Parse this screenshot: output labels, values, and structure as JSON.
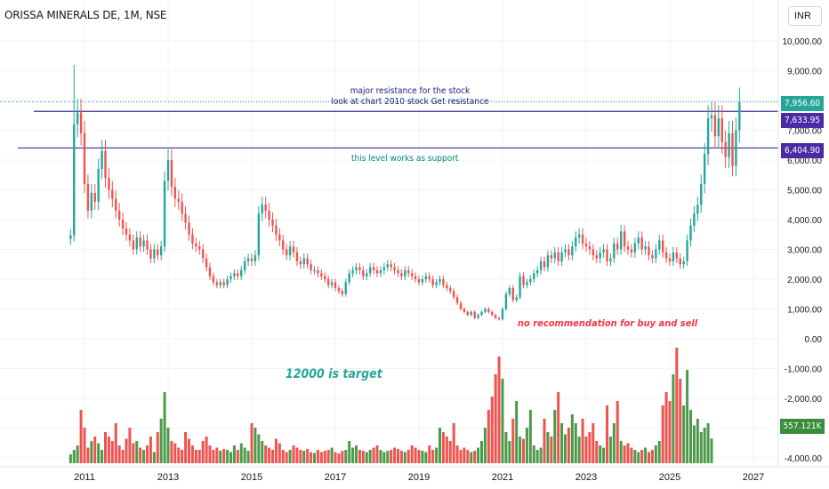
{
  "header": {
    "title": "ORISSA MINERALS DE, 1M, NSE",
    "currency_label": "INR"
  },
  "annotations": {
    "resistance_line1": "major resistance for the stock",
    "resistance_line2": "look at chart 2010 stock Get resistance",
    "support_text": "this level works as support",
    "target_text": "12000 is target",
    "disclaimer_text": "no recommendation for buy and sell"
  },
  "price_badges": [
    {
      "label": "7,956.60",
      "value": 7956.6,
      "color": "#26a69a"
    },
    {
      "label": "7,633.95",
      "value": 7633.95,
      "color": "#4a2ba5"
    },
    {
      "label": "6,404.90",
      "value": 6404.9,
      "color": "#4a2ba5"
    }
  ],
  "volume_badge": {
    "label": "557.121K",
    "color": "#388e3c"
  },
  "colors": {
    "up": "#26a69a",
    "down": "#ef5350",
    "vol_up": "#4c9a49",
    "vol_down": "#ef5350",
    "hline": "#3f2b96",
    "dotted": "#26a69a"
  },
  "chart_data": {
    "type": "candlestick",
    "x_ticks": [
      "2011",
      "2013",
      "2015",
      "2017",
      "2019",
      "2021",
      "2023",
      "2025",
      "2027"
    ],
    "y_ticks": [
      "10,000.00",
      "9,000.00",
      "8,000.00",
      "7,000.00",
      "6,000.00",
      "5,000.00",
      "4,000.00",
      "3,000.00",
      "2,000.00",
      "1,000.00",
      "0.00",
      "-1,000.00",
      "-2,000.00",
      "-3,000.00",
      "-4,000.00"
    ],
    "y_tick_values": [
      10000,
      9000,
      8000,
      7000,
      6000,
      5000,
      4000,
      3000,
      2000,
      1000,
      0,
      -1000,
      -2000,
      -3000,
      -4000
    ],
    "horizontal_levels": [
      7633.95,
      6404.9
    ],
    "last_price": 7956.6,
    "start_date": "2010-09",
    "close": [
      3480,
      7200,
      7600,
      6900,
      5200,
      4300,
      4900,
      4600,
      5700,
      6300,
      5400,
      5000,
      4700,
      4300,
      4000,
      3700,
      3500,
      3300,
      3000,
      3400,
      3100,
      3300,
      3000,
      2700,
      3000,
      2800,
      3100,
      5300,
      6000,
      5100,
      4700,
      4600,
      4200,
      3900,
      3500,
      3200,
      3100,
      3000,
      2700,
      2400,
      2100,
      1900,
      1800,
      1900,
      1800,
      2000,
      2100,
      2200,
      2100,
      2300,
      2600,
      2700,
      2600,
      2800,
      4200,
      4500,
      4300,
      4000,
      3800,
      3500,
      3300,
      3000,
      2800,
      3100,
      2900,
      2600,
      2500,
      2700,
      2500,
      2300,
      2300,
      2200,
      2100,
      2000,
      1800,
      1900,
      1700,
      1600,
      1500,
      1900,
      2200,
      2300,
      2400,
      2300,
      2100,
      2200,
      2400,
      2300,
      2200,
      2300,
      2400,
      2500,
      2400,
      2300,
      2200,
      2100,
      2300,
      2200,
      2100,
      2000,
      1900,
      2000,
      2100,
      2000,
      1800,
      1900,
      2000,
      1800,
      1700,
      1600,
      1400,
      1200,
      1000,
      900,
      800,
      900,
      700,
      800,
      900,
      1000,
      900,
      800,
      700,
      650,
      1000,
      1500,
      1700,
      1300,
      1400,
      2100,
      1800,
      1900,
      2000,
      2200,
      2300,
      2600,
      2400,
      2800,
      2700,
      2900,
      2600,
      2900,
      3000,
      2800,
      3100,
      3400,
      3500,
      3200,
      3100,
      3000,
      2800,
      2700,
      2900,
      3000,
      2600,
      2700,
      3200,
      3000,
      3600,
      3100,
      3000,
      2900,
      3200,
      3400,
      3000,
      3100,
      2800,
      2700,
      3000,
      3300,
      2900,
      2700,
      2600,
      2900,
      2700,
      2500,
      2600,
      3300,
      3800,
      4200,
      4500,
      5200,
      6200,
      7400,
      7500,
      6800,
      7400,
      6600,
      6100,
      6900,
      5800,
      7000,
      7956.6
    ],
    "volume_k": [
      200,
      300,
      400,
      1200,
      800,
      350,
      500,
      600,
      450,
      300,
      700,
      600,
      500,
      900,
      400,
      300,
      550,
      800,
      450,
      500,
      350,
      300,
      400,
      600,
      250,
      700,
      1000,
      1600,
      800,
      500,
      450,
      350,
      300,
      700,
      550,
      400,
      300,
      300,
      500,
      600,
      400,
      300,
      350,
      280,
      320,
      300,
      250,
      400,
      300,
      450,
      350,
      280,
      900,
      800,
      650,
      500,
      400,
      350,
      300,
      550,
      450,
      300,
      250,
      300,
      400,
      350,
      300,
      280,
      320,
      250,
      230,
      300,
      250,
      280,
      300,
      350,
      250,
      220,
      280,
      300,
      500,
      350,
      400,
      300,
      280,
      250,
      300,
      350,
      400,
      300,
      250,
      280,
      300,
      350,
      320,
      280,
      250,
      300,
      400,
      350,
      300,
      280,
      250,
      400,
      300,
      350,
      800,
      700,
      600,
      500,
      900,
      400,
      300,
      350,
      300,
      250,
      280,
      350,
      500,
      800,
      1200,
      1500,
      2000,
      2400,
      1900,
      700,
      500,
      1000,
      1400,
      600,
      550,
      800,
      1200,
      400,
      300,
      350,
      1000,
      700,
      600,
      1200,
      1600,
      900,
      650,
      800,
      1100,
      900,
      600,
      1000,
      600,
      700,
      900,
      500,
      400,
      350,
      1300,
      600,
      900,
      1400,
      500,
      400,
      450,
      350,
      300,
      250,
      300,
      350,
      250,
      300,
      400,
      500,
      1300,
      1600,
      1400,
      2000,
      2600,
      1900,
      1300,
      2100,
      1200,
      850,
      1000,
      700,
      800,
      900,
      557.121
    ],
    "volume_ylim": [
      0,
      3000
    ],
    "price_ylim": [
      -4000,
      10000
    ]
  }
}
